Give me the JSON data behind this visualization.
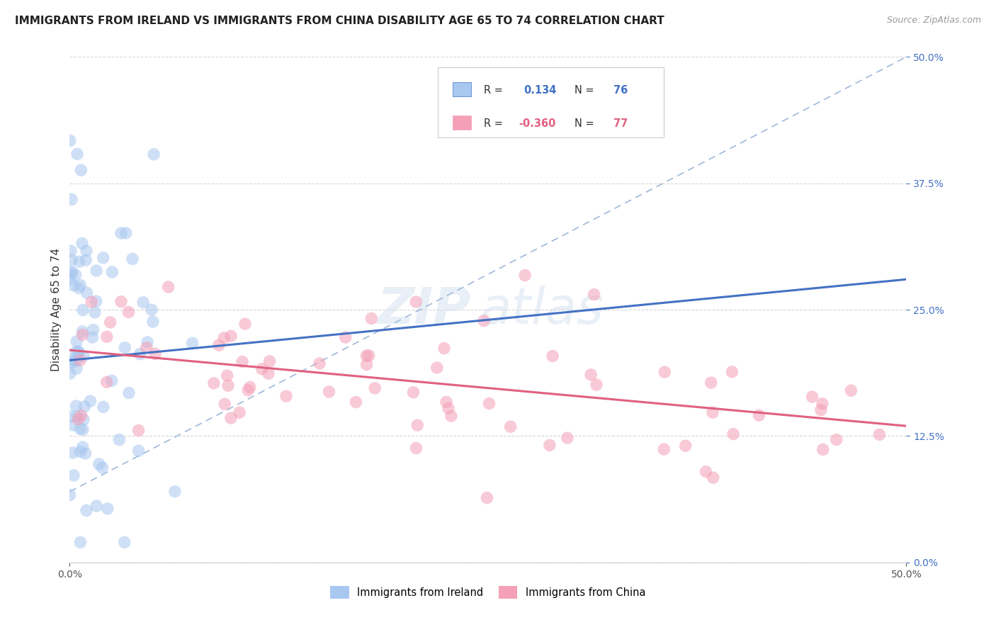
{
  "title": "IMMIGRANTS FROM IRELAND VS IMMIGRANTS FROM CHINA DISABILITY AGE 65 TO 74 CORRELATION CHART",
  "source": "Source: ZipAtlas.com",
  "ylabel": "Disability Age 65 to 74",
  "xlim": [
    0.0,
    50.0
  ],
  "ylim": [
    0.0,
    50.0
  ],
  "ireland_color": "#a8c8f0",
  "china_color": "#f4a0b8",
  "ireland_R": 0.134,
  "ireland_N": 76,
  "china_R": -0.36,
  "china_N": 77,
  "watermark_zip": "ZIP",
  "watermark_atlas": "atlas",
  "background_color": "#ffffff",
  "grid_color": "#d8d8d8",
  "trendline_ireland_color": "#4472c4",
  "trendline_china_color": "#e06080",
  "dashed_line_color": "#a0b8d8",
  "ytick_color": "#4472c4",
  "legend_border_color": "#cccccc",
  "legend_R_color": "#4472c4",
  "legend_text_color": "#333333",
  "ireland_trendline": [
    [
      0,
      20.0
    ],
    [
      50,
      28.0
    ]
  ],
  "china_trendline": [
    [
      0,
      21.0
    ],
    [
      50,
      13.5
    ]
  ],
  "dashed_trendline": [
    [
      0,
      7.0
    ],
    [
      50,
      50.0
    ]
  ]
}
